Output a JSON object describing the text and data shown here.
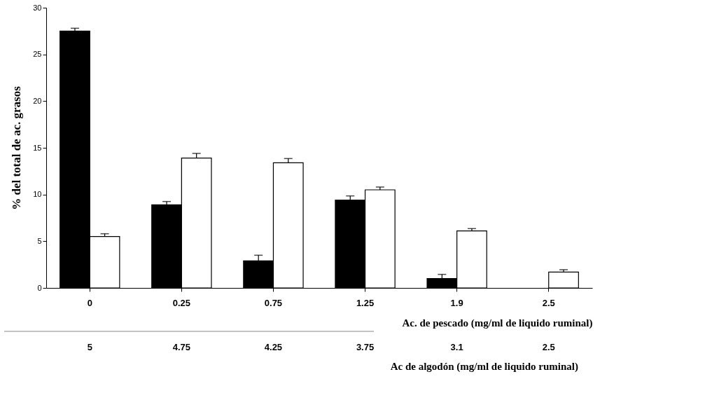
{
  "chart_data": {
    "type": "bar",
    "ylabel": "% del total de ac. grasos",
    "xlabel": "Ac. de pescado (mg/ml de liquido ruminal)",
    "categories": [
      "0",
      "0.25",
      "0.75",
      "1.25",
      "1.9",
      "2.5"
    ],
    "series": [
      {
        "color": "#000000",
        "values": [
          27.5,
          8.9,
          2.9,
          9.4,
          1.0,
          null
        ],
        "errors": [
          0.3,
          0.35,
          0.6,
          0.45,
          0.45,
          null
        ]
      },
      {
        "color": "#ffffff",
        "values": [
          5.5,
          13.9,
          13.4,
          10.5,
          6.1,
          1.7
        ],
        "errors": [
          0.3,
          0.5,
          0.45,
          0.3,
          0.25,
          0.25
        ]
      }
    ],
    "ylim": [
      0,
      30
    ],
    "yticks": [
      0,
      5,
      10,
      15,
      20,
      25,
      30
    ],
    "grid": false,
    "legend": false,
    "annotations": [
      "5",
      "4.75",
      "4.25",
      "3.75",
      "3.1",
      "2.5",
      "Ac de algodón (mg/ml de liquido ruminal)"
    ]
  }
}
